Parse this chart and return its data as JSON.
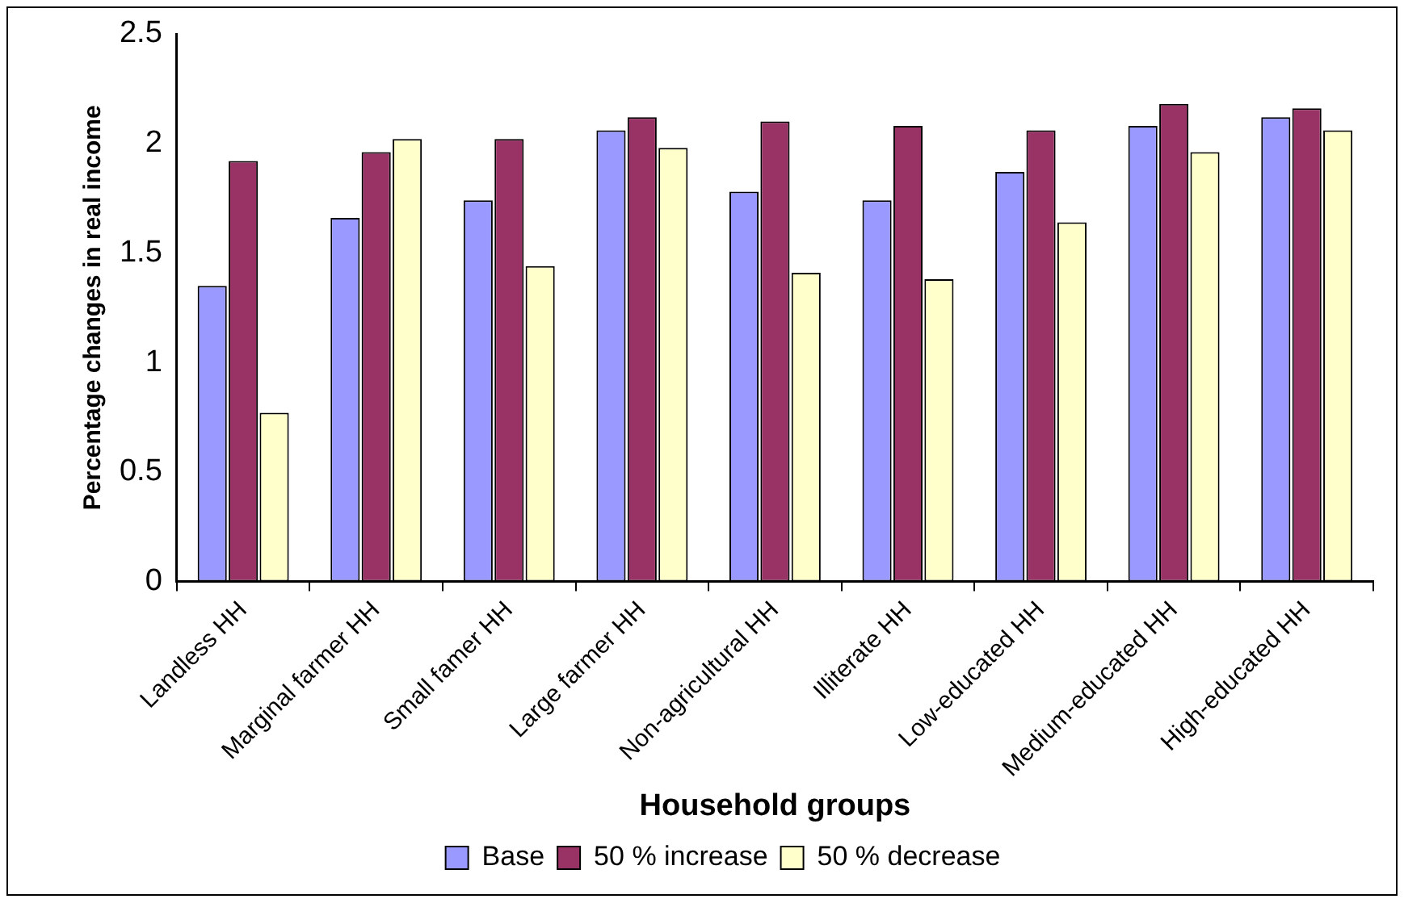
{
  "chart_data": {
    "type": "bar",
    "xlabel": "Household groups",
    "ylabel": "Percentage changes in real income",
    "categories": [
      "Landless HH",
      "Marginal farmer HH",
      "Small famer HH",
      "Large farmer HH",
      "Non-agricultural HH",
      "Illiterate HH",
      "Low-educated HH",
      "Medium-educated HH",
      "High-educated HH"
    ],
    "series": [
      {
        "name": "Base",
        "color": "#9999ff",
        "values": [
          1.35,
          1.66,
          1.74,
          2.06,
          1.78,
          1.74,
          1.87,
          2.08,
          2.12
        ]
      },
      {
        "name": "50 % increase",
        "color": "#993366",
        "values": [
          1.92,
          1.96,
          2.02,
          2.12,
          2.1,
          2.08,
          2.06,
          2.18,
          2.16
        ]
      },
      {
        "name": "50 % decrease",
        "color": "#ffffcc",
        "values": [
          0.77,
          2.02,
          1.44,
          1.98,
          1.41,
          1.38,
          1.64,
          1.96,
          2.06
        ]
      }
    ],
    "ylim": [
      0,
      2.5
    ],
    "yticks": [
      0,
      0.5,
      1,
      1.5,
      2,
      2.5
    ],
    "grid": false,
    "legend": "bottom"
  }
}
